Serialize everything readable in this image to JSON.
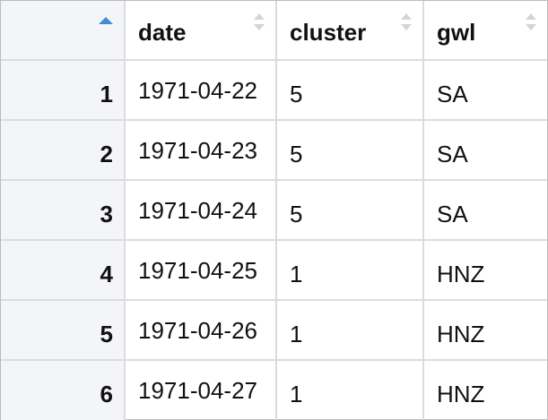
{
  "table": {
    "columns": [
      {
        "key": "date",
        "label": "date"
      },
      {
        "key": "cluster",
        "label": "cluster"
      },
      {
        "key": "gwl",
        "label": "gwl"
      }
    ],
    "sort": {
      "column": "index",
      "direction": "ascending",
      "active_color": "#3b8fd9"
    },
    "rows": [
      {
        "index": "1",
        "date": "1971-04-22",
        "cluster": "5",
        "gwl": "SA"
      },
      {
        "index": "2",
        "date": "1971-04-23",
        "cluster": "5",
        "gwl": "SA"
      },
      {
        "index": "3",
        "date": "1971-04-24",
        "cluster": "5",
        "gwl": "SA"
      },
      {
        "index": "4",
        "date": "1971-04-25",
        "cluster": "1",
        "gwl": "HNZ"
      },
      {
        "index": "5",
        "date": "1971-04-26",
        "cluster": "1",
        "gwl": "HNZ"
      },
      {
        "index": "6",
        "date": "1971-04-27",
        "cluster": "1",
        "gwl": "HNZ"
      }
    ]
  }
}
